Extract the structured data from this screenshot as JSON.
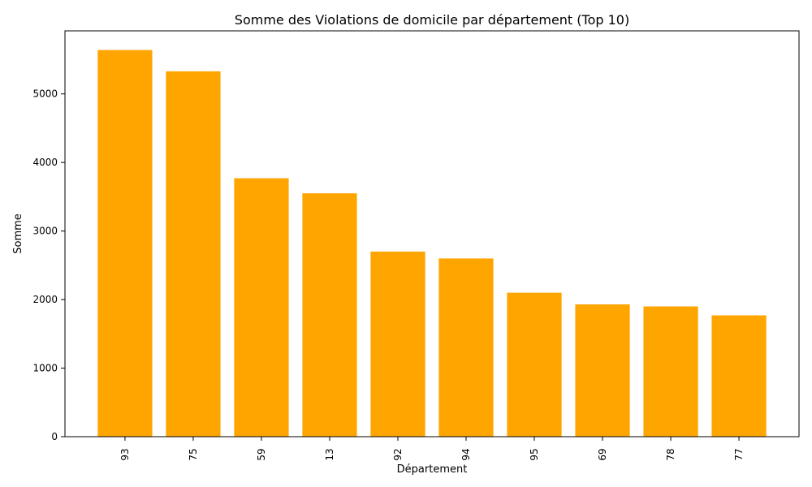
{
  "chart_data": {
    "type": "bar",
    "title": "Somme des Violations de domicile par département (Top 10)",
    "xlabel": "Département",
    "ylabel": "Somme",
    "categories": [
      "93",
      "75",
      "59",
      "13",
      "92",
      "94",
      "95",
      "69",
      "78",
      "77"
    ],
    "values": [
      5640,
      5330,
      3770,
      3550,
      2700,
      2600,
      2100,
      1930,
      1900,
      1770
    ],
    "ylim": [
      0,
      5920
    ],
    "yticks": [
      0,
      1000,
      2000,
      3000,
      4000,
      5000
    ],
    "bar_color": "#FFA500",
    "grid": false,
    "legend": "none"
  }
}
